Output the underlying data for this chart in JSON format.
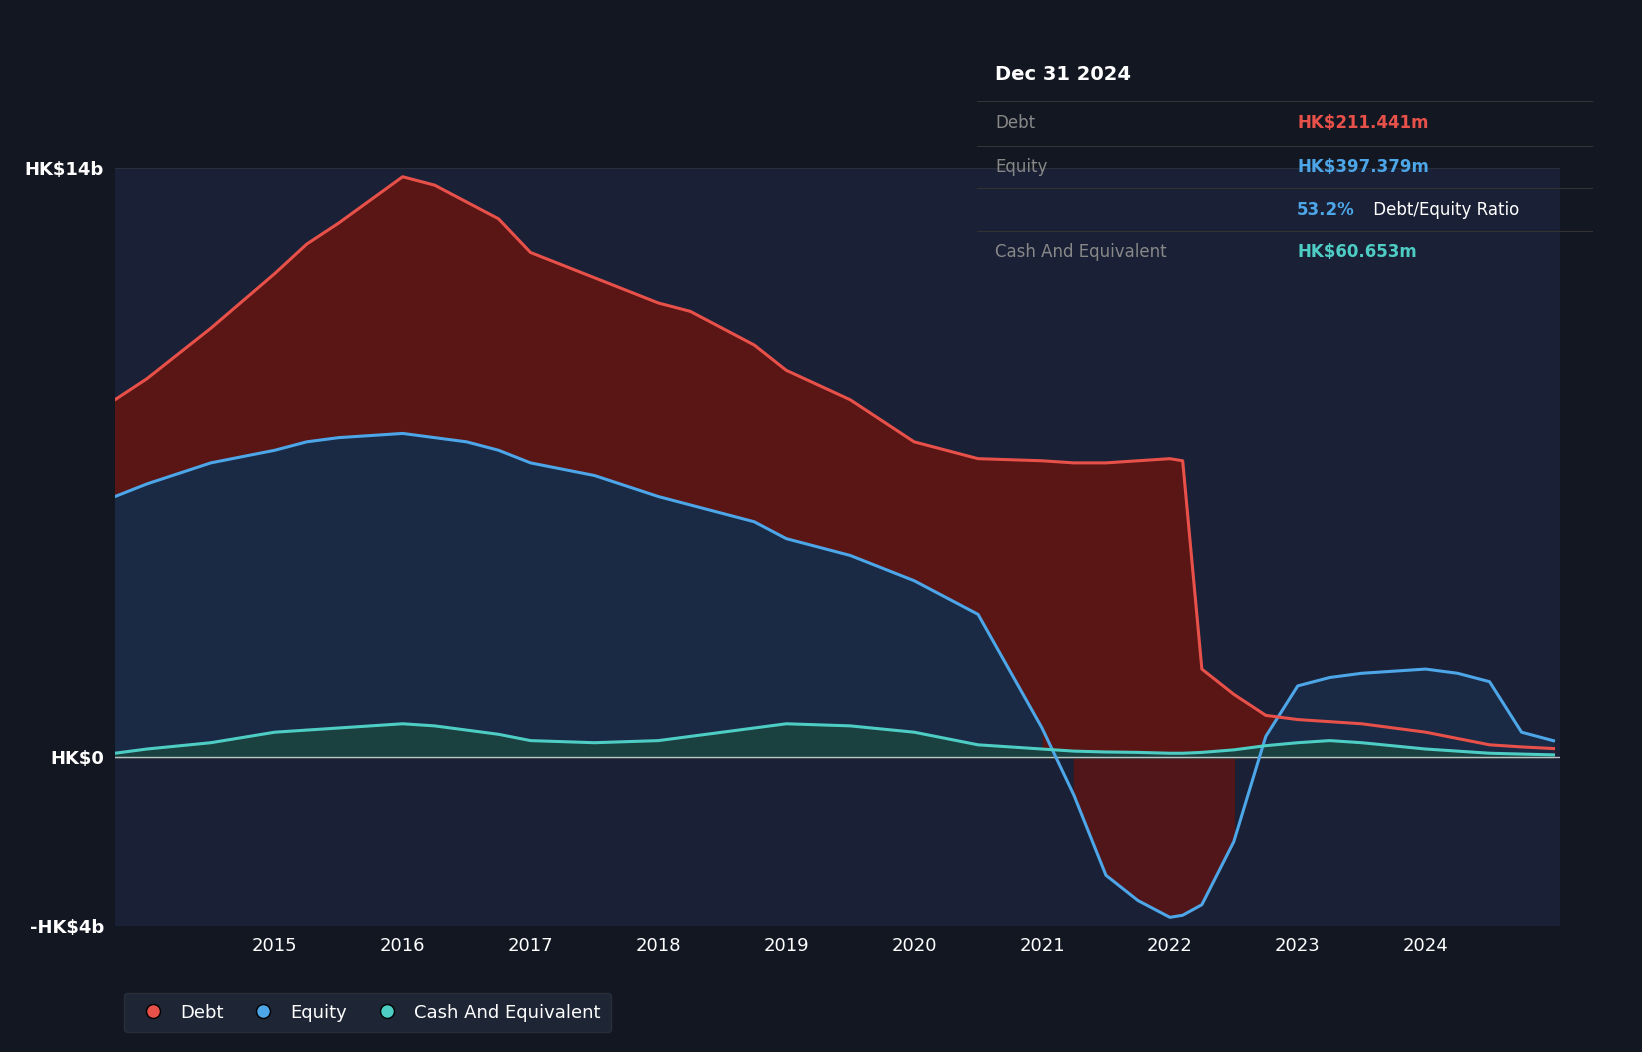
{
  "background_color": "#131722",
  "plot_bg_color": "#1a2035",
  "grid_color": "#2a2e39",
  "debt_color": "#e8514a",
  "equity_color": "#4da6e8",
  "cash_color": "#4ecdc4",
  "debt_fill_color": "#5a1515",
  "equity_fill_color": "#1a2a45",
  "cash_fill_color": "#1a4040",
  "tooltip_title": "Dec 31 2024",
  "tooltip_debt_label": "Debt",
  "tooltip_debt_val": "HK$211.441m",
  "tooltip_equity_label": "Equity",
  "tooltip_equity_val": "HK$397.379m",
  "tooltip_ratio": "53.2%",
  "tooltip_ratio_suffix": " Debt/Equity Ratio",
  "tooltip_cash_label": "Cash And Equivalent",
  "tooltip_cash_val": "HK$60.653m",
  "legend_labels": [
    "Debt",
    "Equity",
    "Cash And Equivalent"
  ],
  "ylim_min": -4000,
  "ylim_max": 14000,
  "ytick_vals": [
    -4000,
    0,
    14000
  ],
  "ytick_labels": [
    "-HK$4b",
    "HK$0",
    "HK$14b"
  ],
  "x_tick_years": [
    2015,
    2016,
    2017,
    2018,
    2019,
    2020,
    2021,
    2022,
    2023,
    2024
  ],
  "years": [
    2013.75,
    2014.0,
    2014.5,
    2015.0,
    2015.25,
    2015.5,
    2016.0,
    2016.25,
    2016.5,
    2016.75,
    2017.0,
    2017.5,
    2018.0,
    2018.25,
    2018.5,
    2018.75,
    2019.0,
    2019.5,
    2020.0,
    2020.25,
    2020.5,
    2021.0,
    2021.25,
    2021.5,
    2021.75,
    2022.0,
    2022.1,
    2022.25,
    2022.5,
    2022.75,
    2023.0,
    2023.25,
    2023.5,
    2024.0,
    2024.25,
    2024.5,
    2024.75,
    2025.0
  ],
  "debt": [
    8500,
    9000,
    10200,
    11500,
    12200,
    12700,
    13800,
    13600,
    13200,
    12800,
    12000,
    11400,
    10800,
    10600,
    10200,
    9800,
    9200,
    8500,
    7500,
    7300,
    7100,
    7050,
    7000,
    7000,
    7050,
    7100,
    7050,
    2100,
    1500,
    1000,
    900,
    850,
    800,
    600,
    450,
    300,
    250,
    211
  ],
  "equity": [
    6200,
    6500,
    7000,
    7300,
    7500,
    7600,
    7700,
    7600,
    7500,
    7300,
    7000,
    6700,
    6200,
    6000,
    5800,
    5600,
    5200,
    4800,
    4200,
    3800,
    3400,
    700,
    -900,
    -2800,
    -3400,
    -3800,
    -3750,
    -3500,
    -2000,
    500,
    1700,
    1900,
    2000,
    2100,
    2000,
    1800,
    600,
    397
  ],
  "cash": [
    100,
    200,
    350,
    600,
    650,
    700,
    800,
    750,
    650,
    550,
    400,
    350,
    400,
    500,
    600,
    700,
    800,
    750,
    600,
    450,
    300,
    200,
    150,
    130,
    120,
    100,
    100,
    120,
    180,
    280,
    350,
    400,
    350,
    200,
    150,
    100,
    80,
    61
  ]
}
